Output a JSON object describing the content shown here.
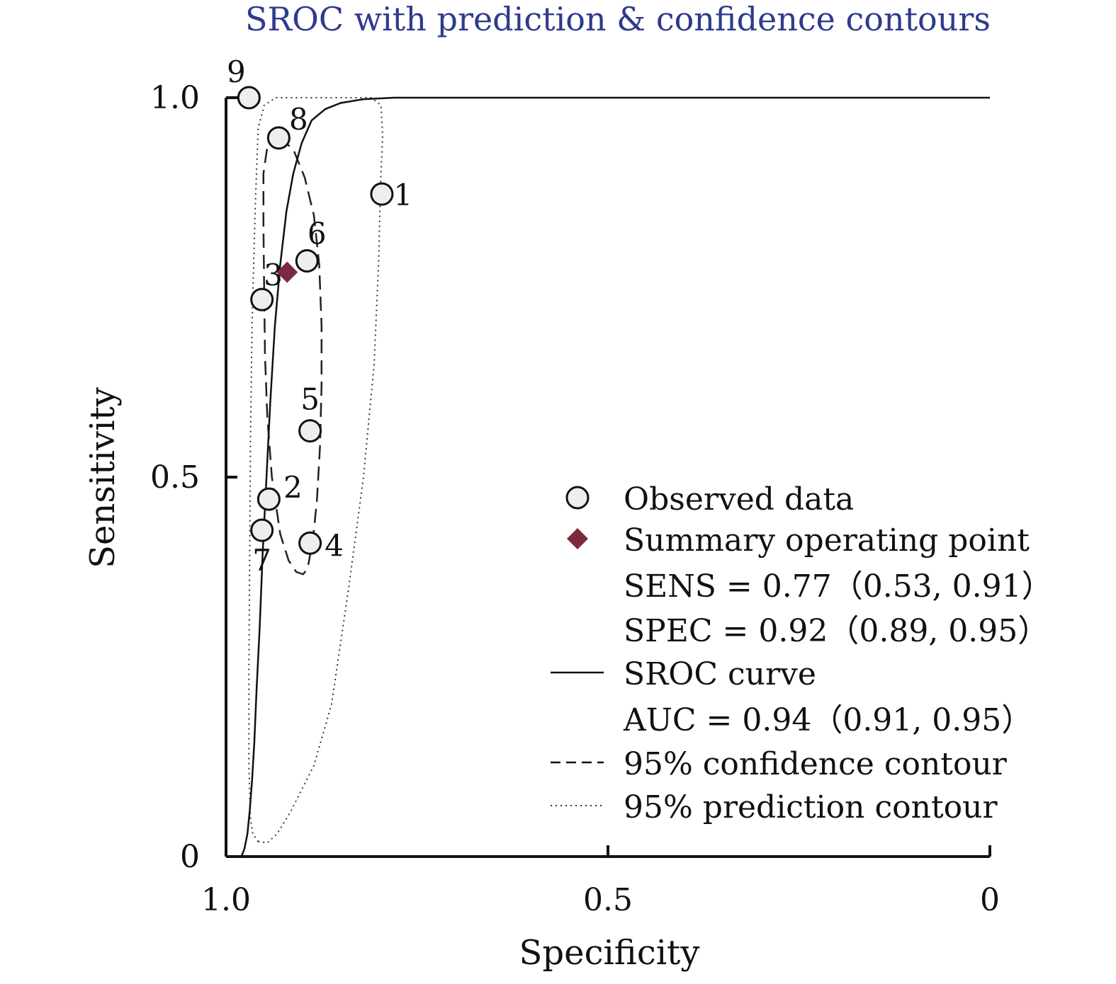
{
  "chart_data": {
    "type": "scatter",
    "title": "SROC with prediction & confidence contours",
    "xlabel": "Specificity",
    "ylabel": "Sensitivity",
    "x_axis_reversed": true,
    "xlim": [
      1.0,
      0
    ],
    "ylim": [
      0,
      1.0
    ],
    "x_ticks": [
      1.0,
      0.5,
      0
    ],
    "x_tick_labels": [
      "1.0",
      "0.5",
      "0"
    ],
    "y_ticks": [
      0,
      0.5,
      1.0
    ],
    "y_tick_labels": [
      "0",
      "0.5",
      "1.0"
    ],
    "grid": false,
    "legend_placement": "bottom-right",
    "observed_data": [
      {
        "label": "1",
        "spec": 0.796,
        "sens": 0.873
      },
      {
        "label": "2",
        "spec": 0.944,
        "sens": 0.471
      },
      {
        "label": "3",
        "spec": 0.953,
        "sens": 0.734
      },
      {
        "label": "4",
        "spec": 0.89,
        "sens": 0.413
      },
      {
        "label": "5",
        "spec": 0.89,
        "sens": 0.561
      },
      {
        "label": "6",
        "spec": 0.894,
        "sens": 0.785
      },
      {
        "label": "7",
        "spec": 0.953,
        "sens": 0.43
      },
      {
        "label": "8",
        "spec": 0.931,
        "sens": 0.947
      },
      {
        "label": "9",
        "spec": 0.97,
        "sens": 1.0
      }
    ],
    "summary_point": {
      "spec": 0.92,
      "sens": 0.77,
      "color": "#7b2a3d"
    },
    "sroc_curve": [
      [
        0.98,
        0.0
      ],
      [
        0.976,
        0.01
      ],
      [
        0.972,
        0.03
      ],
      [
        0.969,
        0.06
      ],
      [
        0.966,
        0.1
      ],
      [
        0.963,
        0.15
      ],
      [
        0.96,
        0.22
      ],
      [
        0.956,
        0.3
      ],
      [
        0.952,
        0.4
      ],
      [
        0.947,
        0.5
      ],
      [
        0.942,
        0.6
      ],
      [
        0.936,
        0.7
      ],
      [
        0.929,
        0.78
      ],
      [
        0.921,
        0.85
      ],
      [
        0.912,
        0.9
      ],
      [
        0.901,
        0.94
      ],
      [
        0.888,
        0.97
      ],
      [
        0.87,
        0.985
      ],
      [
        0.85,
        0.993
      ],
      [
        0.82,
        0.998
      ],
      [
        0.78,
        1.0
      ],
      [
        0.6,
        1.0
      ],
      [
        0.4,
        1.0
      ],
      [
        0.2,
        1.0
      ],
      [
        0.0,
        1.0
      ]
    ],
    "confidence_contour": [
      [
        0.931,
        0.948
      ],
      [
        0.912,
        0.932
      ],
      [
        0.897,
        0.895
      ],
      [
        0.885,
        0.845
      ],
      [
        0.878,
        0.78
      ],
      [
        0.875,
        0.7
      ],
      [
        0.875,
        0.62
      ],
      [
        0.877,
        0.54
      ],
      [
        0.881,
        0.47
      ],
      [
        0.886,
        0.42
      ],
      [
        0.893,
        0.38
      ],
      [
        0.899,
        0.372
      ],
      [
        0.908,
        0.375
      ],
      [
        0.918,
        0.39
      ],
      [
        0.929,
        0.425
      ],
      [
        0.94,
        0.5
      ],
      [
        0.946,
        0.58
      ],
      [
        0.949,
        0.66
      ],
      [
        0.95,
        0.74
      ],
      [
        0.951,
        0.83
      ],
      [
        0.951,
        0.9
      ],
      [
        0.946,
        0.935
      ],
      [
        0.939,
        0.95
      ],
      [
        0.931,
        0.948
      ]
    ],
    "prediction_contour": [
      [
        0.958,
        0.02
      ],
      [
        0.946,
        0.018
      ],
      [
        0.933,
        0.03
      ],
      [
        0.915,
        0.06
      ],
      [
        0.885,
        0.12
      ],
      [
        0.862,
        0.2
      ],
      [
        0.84,
        0.35
      ],
      [
        0.82,
        0.5
      ],
      [
        0.806,
        0.65
      ],
      [
        0.8,
        0.79
      ],
      [
        0.798,
        0.88
      ],
      [
        0.795,
        0.95
      ],
      [
        0.797,
        0.99
      ],
      [
        0.81,
        1.0
      ],
      [
        0.87,
        1.0
      ],
      [
        0.935,
        1.0
      ],
      [
        0.95,
        0.99
      ],
      [
        0.958,
        0.96
      ],
      [
        0.962,
        0.85
      ],
      [
        0.966,
        0.7
      ],
      [
        0.968,
        0.55
      ],
      [
        0.969,
        0.4
      ],
      [
        0.97,
        0.25
      ],
      [
        0.97,
        0.12
      ],
      [
        0.968,
        0.05
      ],
      [
        0.965,
        0.03
      ],
      [
        0.958,
        0.02
      ]
    ],
    "legend": [
      {
        "marker": "circle",
        "label": "Observed data"
      },
      {
        "marker": "diamond",
        "label": "Summary operating point"
      },
      {
        "marker": "none",
        "label": "SENS = 0.77（0.53, 0.91）"
      },
      {
        "marker": "none",
        "label": "SPEC = 0.92（0.89, 0.95）"
      },
      {
        "marker": "solid",
        "label": "SROC curve"
      },
      {
        "marker": "none",
        "label": "AUC = 0.94（0.91, 0.95）"
      },
      {
        "marker": "dashed",
        "label": "95% confidence contour"
      },
      {
        "marker": "dotted",
        "label": "95% prediction contour"
      }
    ],
    "colors": {
      "title": "#2e3a8c",
      "axis": "#111111",
      "marker_fill": "#eeeeee",
      "summary": "#7b2a3d"
    }
  }
}
